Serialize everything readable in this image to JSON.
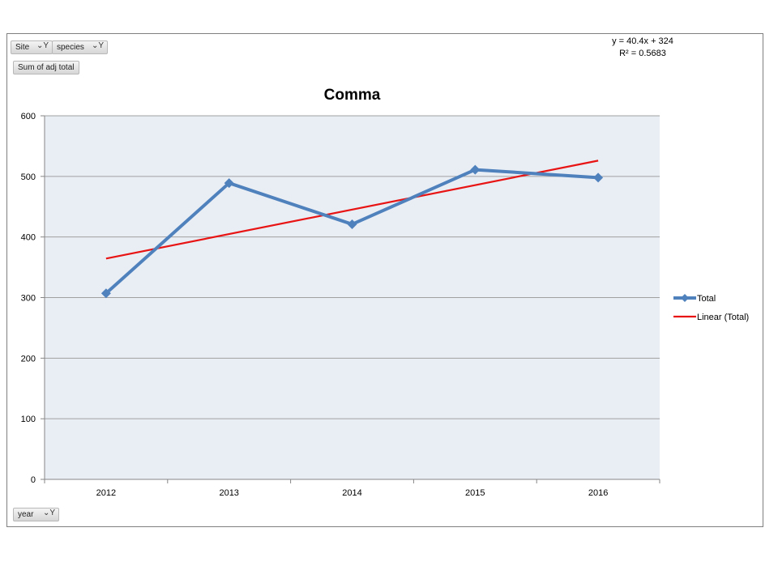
{
  "field_buttons": {
    "site": "Site",
    "species": "species",
    "sum": "Sum of adj total",
    "year": "year"
  },
  "trendline_equation": {
    "line1": "y = 40.4x + 324",
    "line2": "R² = 0.5683"
  },
  "colors": {
    "series": "#4f81bd",
    "trend": "#e81414",
    "plot_bg": "#e9eef5",
    "grid": "#a0a0a0"
  },
  "chart_data": {
    "type": "line",
    "title": "Comma",
    "xlabel": "",
    "ylabel": "",
    "categories": [
      "2012",
      "2013",
      "2014",
      "2015",
      "2016"
    ],
    "ylim": [
      0,
      600
    ],
    "yticks": [
      0,
      100,
      200,
      300,
      400,
      500,
      600
    ],
    "ytick_labels": [
      "0",
      "100",
      "200",
      "300",
      "400",
      "500",
      "600"
    ],
    "grid": true,
    "legend_position": "right",
    "series": [
      {
        "name": "Total",
        "values": [
          307,
          489,
          421,
          511,
          498
        ],
        "marker": "diamond"
      },
      {
        "name": "Linear (Total)",
        "trend": true,
        "slope": 40.4,
        "intercept": 324
      }
    ]
  }
}
